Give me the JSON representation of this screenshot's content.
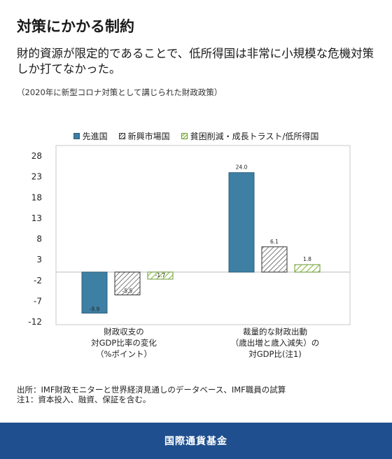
{
  "title": "対策にかかる制約",
  "subtitle": "財的資源が限定的であることで、低所得国は非常に小規模な危機対策しか打てなかった。",
  "caption": "（2020年に新型コロナ対策として講じられた財政政策）",
  "source": [
    "出所：IMF財政モニターと世界経済見通しのデータベース、IMF職員の試算",
    "注1：資本投入、融資、保証を含む。"
  ],
  "footer": "国際通貨基金",
  "colors": {
    "advanced": "#3e7fa4",
    "emerging": "#555555",
    "lowincome": "#8cbf4a",
    "footer_bg": "#1f4f8e"
  },
  "chart_data": {
    "type": "bar",
    "categories": [
      [
        "財政収支の",
        "対GDP比率の変化",
        "（%ポイント）"
      ],
      [
        "裁量的な財政出動",
        "（歳出増と歳入減失）の",
        "対GDP比(注1)"
      ]
    ],
    "series": [
      {
        "name": "先進国",
        "values": [
          -9.9,
          24.0
        ],
        "labels": [
          "-9.9",
          "24.0"
        ]
      },
      {
        "name": "新興市場国",
        "values": [
          -5.5,
          6.1
        ],
        "labels": [
          "-5.5",
          "6.1"
        ]
      },
      {
        "name": "貧困削減・成長トラスト/低所得国",
        "values": [
          -1.7,
          1.8
        ],
        "labels": [
          "-1.7",
          "1.8"
        ]
      }
    ],
    "yticks": [
      28,
      23,
      18,
      13,
      8,
      3,
      -2,
      -7,
      -12
    ],
    "ylim": [
      -12,
      28
    ],
    "xlabel": "",
    "ylabel": "",
    "grid": false,
    "legend": "top"
  }
}
